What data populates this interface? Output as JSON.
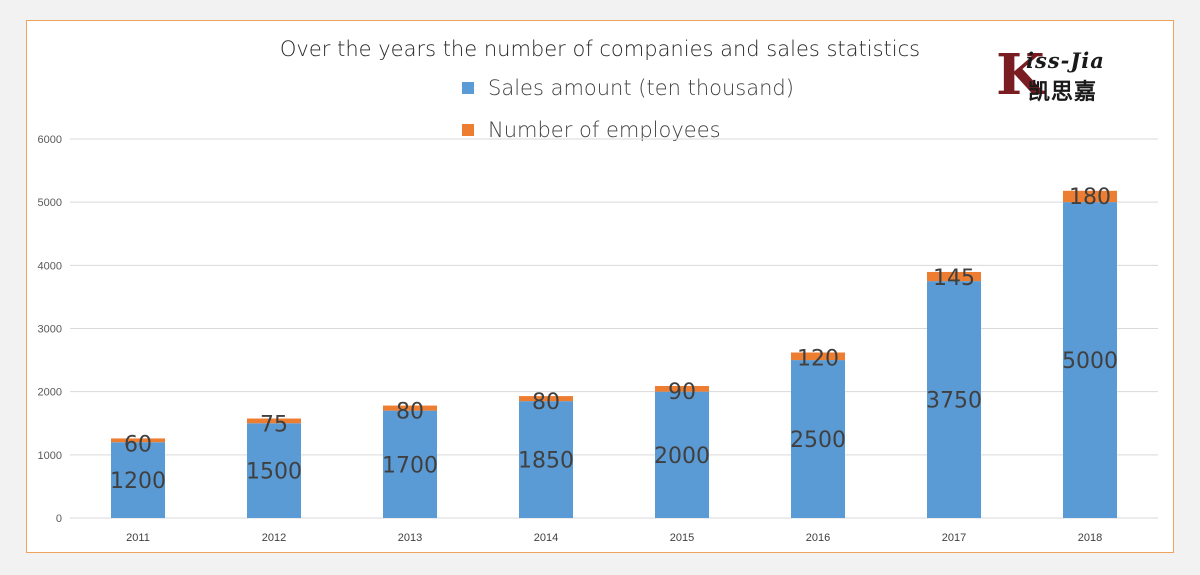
{
  "chart_data": {
    "type": "bar",
    "stacked": true,
    "title": "Over the years the number of companies and sales statistics",
    "categories": [
      "2011",
      "2012",
      "2013",
      "2014",
      "2015",
      "2016",
      "2017",
      "2018"
    ],
    "series": [
      {
        "name": "Sales amount  (ten thousand)",
        "color": "#5b9bd5",
        "values": [
          1200,
          1500,
          1700,
          1850,
          2000,
          2500,
          3750,
          5000
        ]
      },
      {
        "name": "Number of employees",
        "color": "#ed7d31",
        "values": [
          60,
          75,
          80,
          80,
          90,
          120,
          145,
          180
        ]
      }
    ],
    "ylim": [
      0,
      6000
    ],
    "yticks": [
      0,
      1000,
      2000,
      3000,
      4000,
      5000,
      6000
    ],
    "grid": true,
    "legend_position": "top-center",
    "xlabel": "",
    "ylabel": ""
  },
  "colors": {
    "frame_border": "#f0a35e",
    "grid": "#d9d9d9",
    "logo_red": "#7a1d22"
  },
  "logo": {
    "mark": "K",
    "latin": "iss-Jia",
    "chinese": "凯思嘉"
  }
}
